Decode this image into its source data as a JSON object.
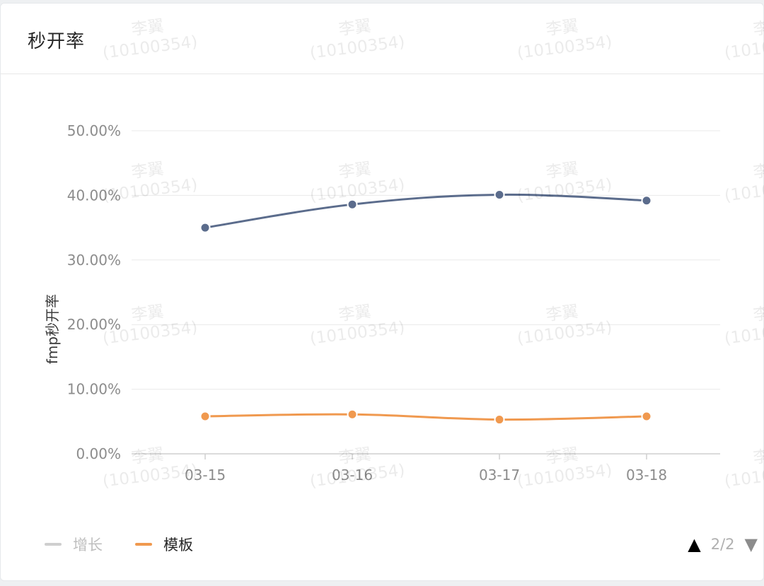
{
  "card": {
    "title": "秒开率"
  },
  "chart_data": {
    "type": "line",
    "categories": [
      "03-15",
      "03-16",
      "03-17",
      "03-18"
    ],
    "series": [
      {
        "name": "增长",
        "values": [
          35.0,
          38.6,
          40.1,
          39.2
        ],
        "color": "#5b6c8c",
        "legend_state": "inactive"
      },
      {
        "name": "模板",
        "values": [
          5.8,
          6.1,
          5.3,
          5.8
        ],
        "color": "#f0994f",
        "legend_state": "active"
      }
    ],
    "ylabel": "fmp秒开率",
    "xlabel": "",
    "ylim": [
      0,
      50
    ],
    "yticks": [
      "0.00%",
      "10.00%",
      "20.00%",
      "30.00%",
      "40.00%",
      "50.00%"
    ],
    "grid": true,
    "legend_position": "bottom-left"
  },
  "legend": {
    "items": [
      {
        "label": "增长",
        "color": "#cfcfcf",
        "text_color": "#bfbfbf"
      },
      {
        "label": "模板",
        "color": "#f0994f",
        "text_color": "#262626"
      }
    ]
  },
  "pager": {
    "up_icon": "▲",
    "text": "2/2",
    "down_icon": "▼"
  },
  "watermark": {
    "name": "李翼",
    "id": "(10100354)"
  }
}
